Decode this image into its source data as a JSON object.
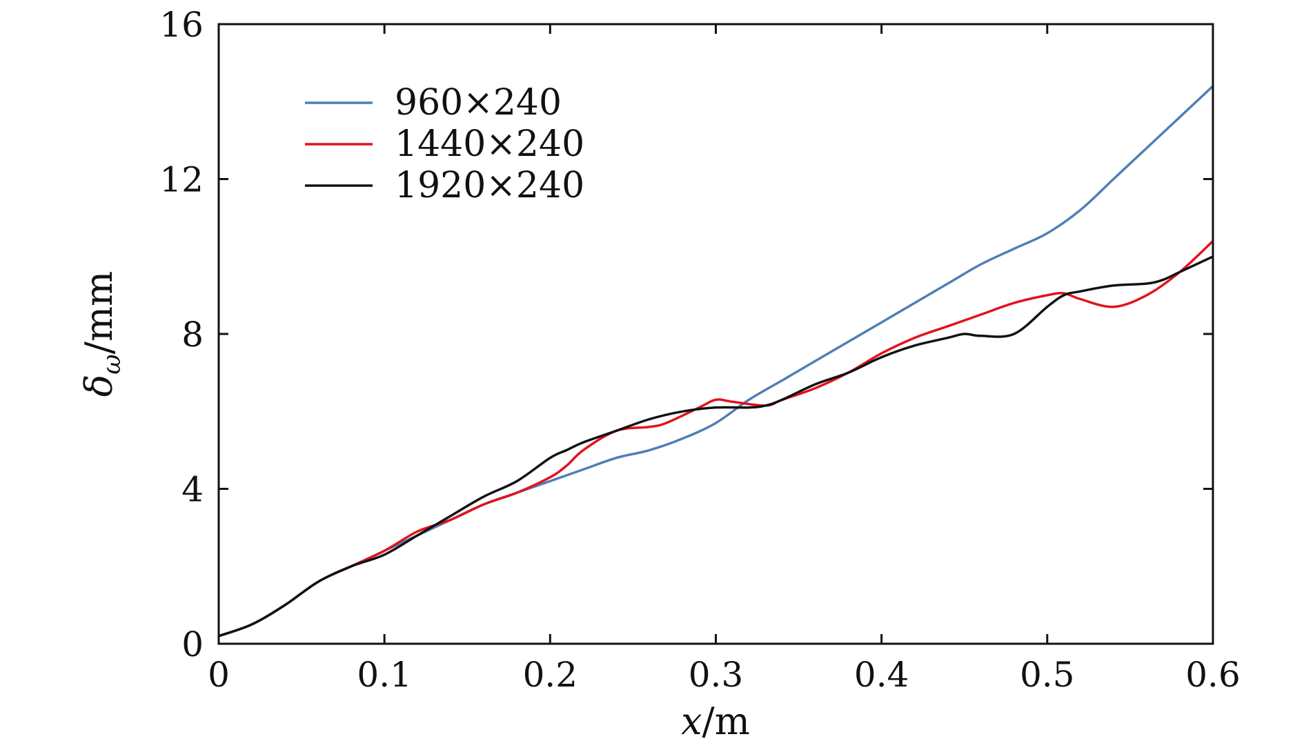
{
  "chart_data": {
    "type": "line",
    "xlabel_var": "x",
    "xlabel_unit": "/m",
    "ylabel_sym": "δ",
    "ylabel_sub": "ω",
    "ylabel_unit": "/mm",
    "xlim": [
      0,
      0.6
    ],
    "ylim": [
      0,
      16
    ],
    "x_ticks": [
      "0",
      "0.1",
      "0.2",
      "0.3",
      "0.4",
      "0.5",
      "0.6"
    ],
    "y_ticks": [
      "0",
      "4",
      "8",
      "12",
      "16"
    ],
    "x_tick_values": [
      0,
      0.1,
      0.2,
      0.3,
      0.4,
      0.5,
      0.6
    ],
    "y_tick_values": [
      0,
      4,
      8,
      12,
      16
    ],
    "grid": false,
    "legend_position": "top-left",
    "series": [
      {
        "name": "960×240",
        "color": "#4f7fb5",
        "x": [
          0,
          0.02,
          0.04,
          0.06,
          0.08,
          0.1,
          0.12,
          0.14,
          0.16,
          0.18,
          0.2,
          0.22,
          0.24,
          0.26,
          0.28,
          0.3,
          0.32,
          0.34,
          0.36,
          0.38,
          0.4,
          0.42,
          0.44,
          0.46,
          0.48,
          0.5,
          0.52,
          0.54,
          0.56,
          0.58,
          0.6
        ],
        "y": [
          0.2,
          0.5,
          1.0,
          1.6,
          2.0,
          2.4,
          2.8,
          3.2,
          3.6,
          3.9,
          4.2,
          4.5,
          4.8,
          5.0,
          5.3,
          5.7,
          6.3,
          6.8,
          7.3,
          7.8,
          8.3,
          8.8,
          9.3,
          9.8,
          10.2,
          10.6,
          11.2,
          12.0,
          12.8,
          13.6,
          14.4
        ]
      },
      {
        "name": "1440×240",
        "color": "#e3121c",
        "x": [
          0,
          0.02,
          0.04,
          0.06,
          0.08,
          0.1,
          0.12,
          0.14,
          0.16,
          0.18,
          0.2,
          0.21,
          0.22,
          0.24,
          0.26,
          0.27,
          0.29,
          0.3,
          0.31,
          0.33,
          0.34,
          0.36,
          0.38,
          0.4,
          0.42,
          0.44,
          0.46,
          0.48,
          0.5,
          0.51,
          0.52,
          0.54,
          0.56,
          0.58,
          0.6
        ],
        "y": [
          0.2,
          0.5,
          1.0,
          1.6,
          2.0,
          2.4,
          2.9,
          3.2,
          3.6,
          3.9,
          4.3,
          4.6,
          5.0,
          5.5,
          5.6,
          5.7,
          6.1,
          6.3,
          6.25,
          6.15,
          6.3,
          6.6,
          7.0,
          7.5,
          7.9,
          8.2,
          8.5,
          8.8,
          9.0,
          9.05,
          8.9,
          8.7,
          9.0,
          9.6,
          10.4
        ]
      },
      {
        "name": "1920×240",
        "color": "#111111",
        "x": [
          0,
          0.02,
          0.04,
          0.06,
          0.08,
          0.1,
          0.12,
          0.14,
          0.16,
          0.18,
          0.2,
          0.21,
          0.22,
          0.24,
          0.26,
          0.28,
          0.3,
          0.32,
          0.33,
          0.34,
          0.36,
          0.38,
          0.4,
          0.42,
          0.44,
          0.45,
          0.46,
          0.48,
          0.5,
          0.51,
          0.52,
          0.54,
          0.56,
          0.57,
          0.58,
          0.6
        ],
        "y": [
          0.2,
          0.5,
          1.0,
          1.6,
          2.0,
          2.3,
          2.8,
          3.3,
          3.8,
          4.2,
          4.8,
          5.0,
          5.2,
          5.5,
          5.8,
          6.0,
          6.1,
          6.1,
          6.15,
          6.3,
          6.7,
          7.0,
          7.4,
          7.7,
          7.9,
          8.0,
          7.95,
          8.0,
          8.7,
          9.0,
          9.1,
          9.25,
          9.3,
          9.4,
          9.6,
          10.0
        ]
      }
    ]
  }
}
